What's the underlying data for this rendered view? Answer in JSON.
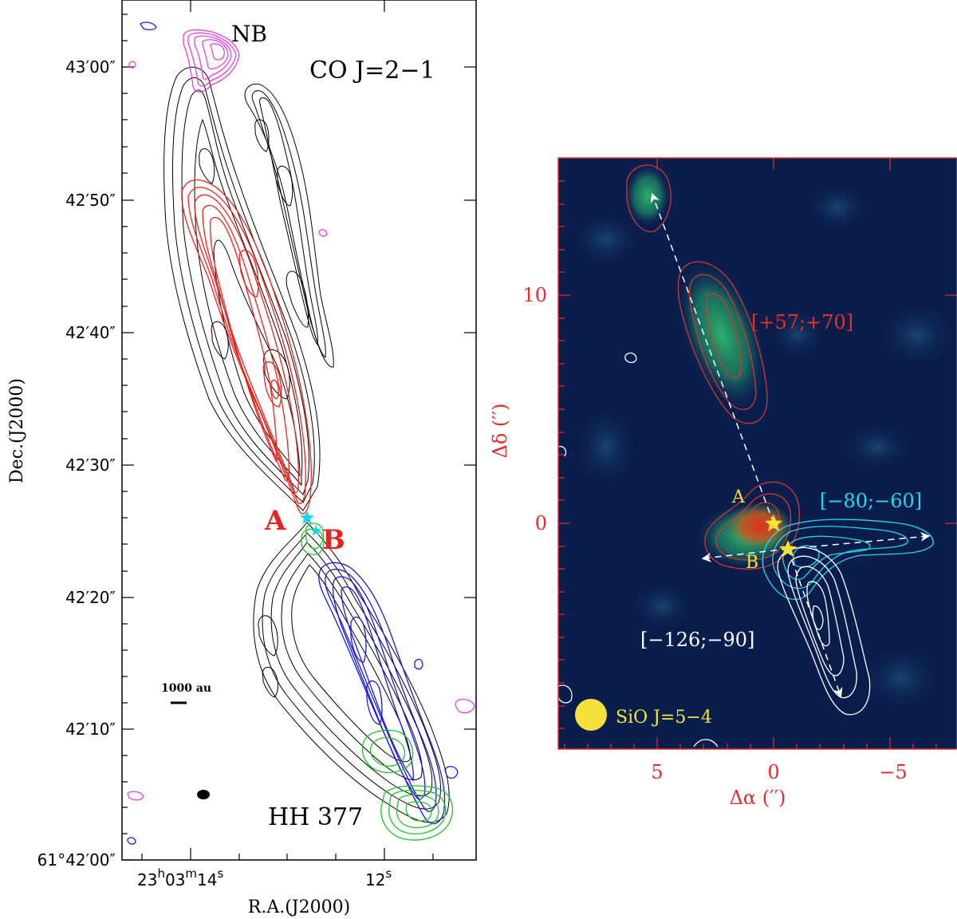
{
  "left_panel": {
    "title": "CO J=2−1",
    "label_nb": "NB",
    "label_a": "A",
    "label_b": "B",
    "label_object": "HH 377",
    "scale_bar_label": "1000 au",
    "ylabel": "Dec.(J2000)",
    "xlabel": "R.A.(J2000)",
    "y_ticks": [
      "43′00″",
      "42′50″",
      "42′40″",
      "42′30″",
      "42′20″",
      "42′10″",
      "61°42′00″"
    ],
    "x_ticks": [
      {
        "main": "23",
        "sup1": "h",
        "mid": "03",
        "sup2": "m",
        "end": "14",
        "sup3": "s"
      },
      {
        "main": "12",
        "sup3": "s"
      }
    ],
    "colors": {
      "redshift": "#e8231f",
      "blueshift": "#1a1ad6",
      "nb": "#e63fe6",
      "green": "#22c12b",
      "cyan": "#1fd3e0",
      "contour": "#000000"
    }
  },
  "right_panel": {
    "title": "SiO J=5−4",
    "label_red_range": "[+57;+70]",
    "label_cyan_range": "[−80;−60]",
    "label_white_range": "[−126;−90]",
    "label_a": "A",
    "label_b": "B",
    "xlabel": "Δα (′′)",
    "ylabel": "Δδ (′′)",
    "x_ticks": [
      "5",
      "0",
      "−5"
    ],
    "y_ticks": [
      "10",
      "0"
    ],
    "colors": {
      "background": "#0a1e4e",
      "axis": "#e82a2a",
      "cyan": "#2bd6e6",
      "white": "#ffffff",
      "yellow": "#f5e13a",
      "red_contour": "#d23a2a",
      "green": "#3cc26b"
    }
  }
}
